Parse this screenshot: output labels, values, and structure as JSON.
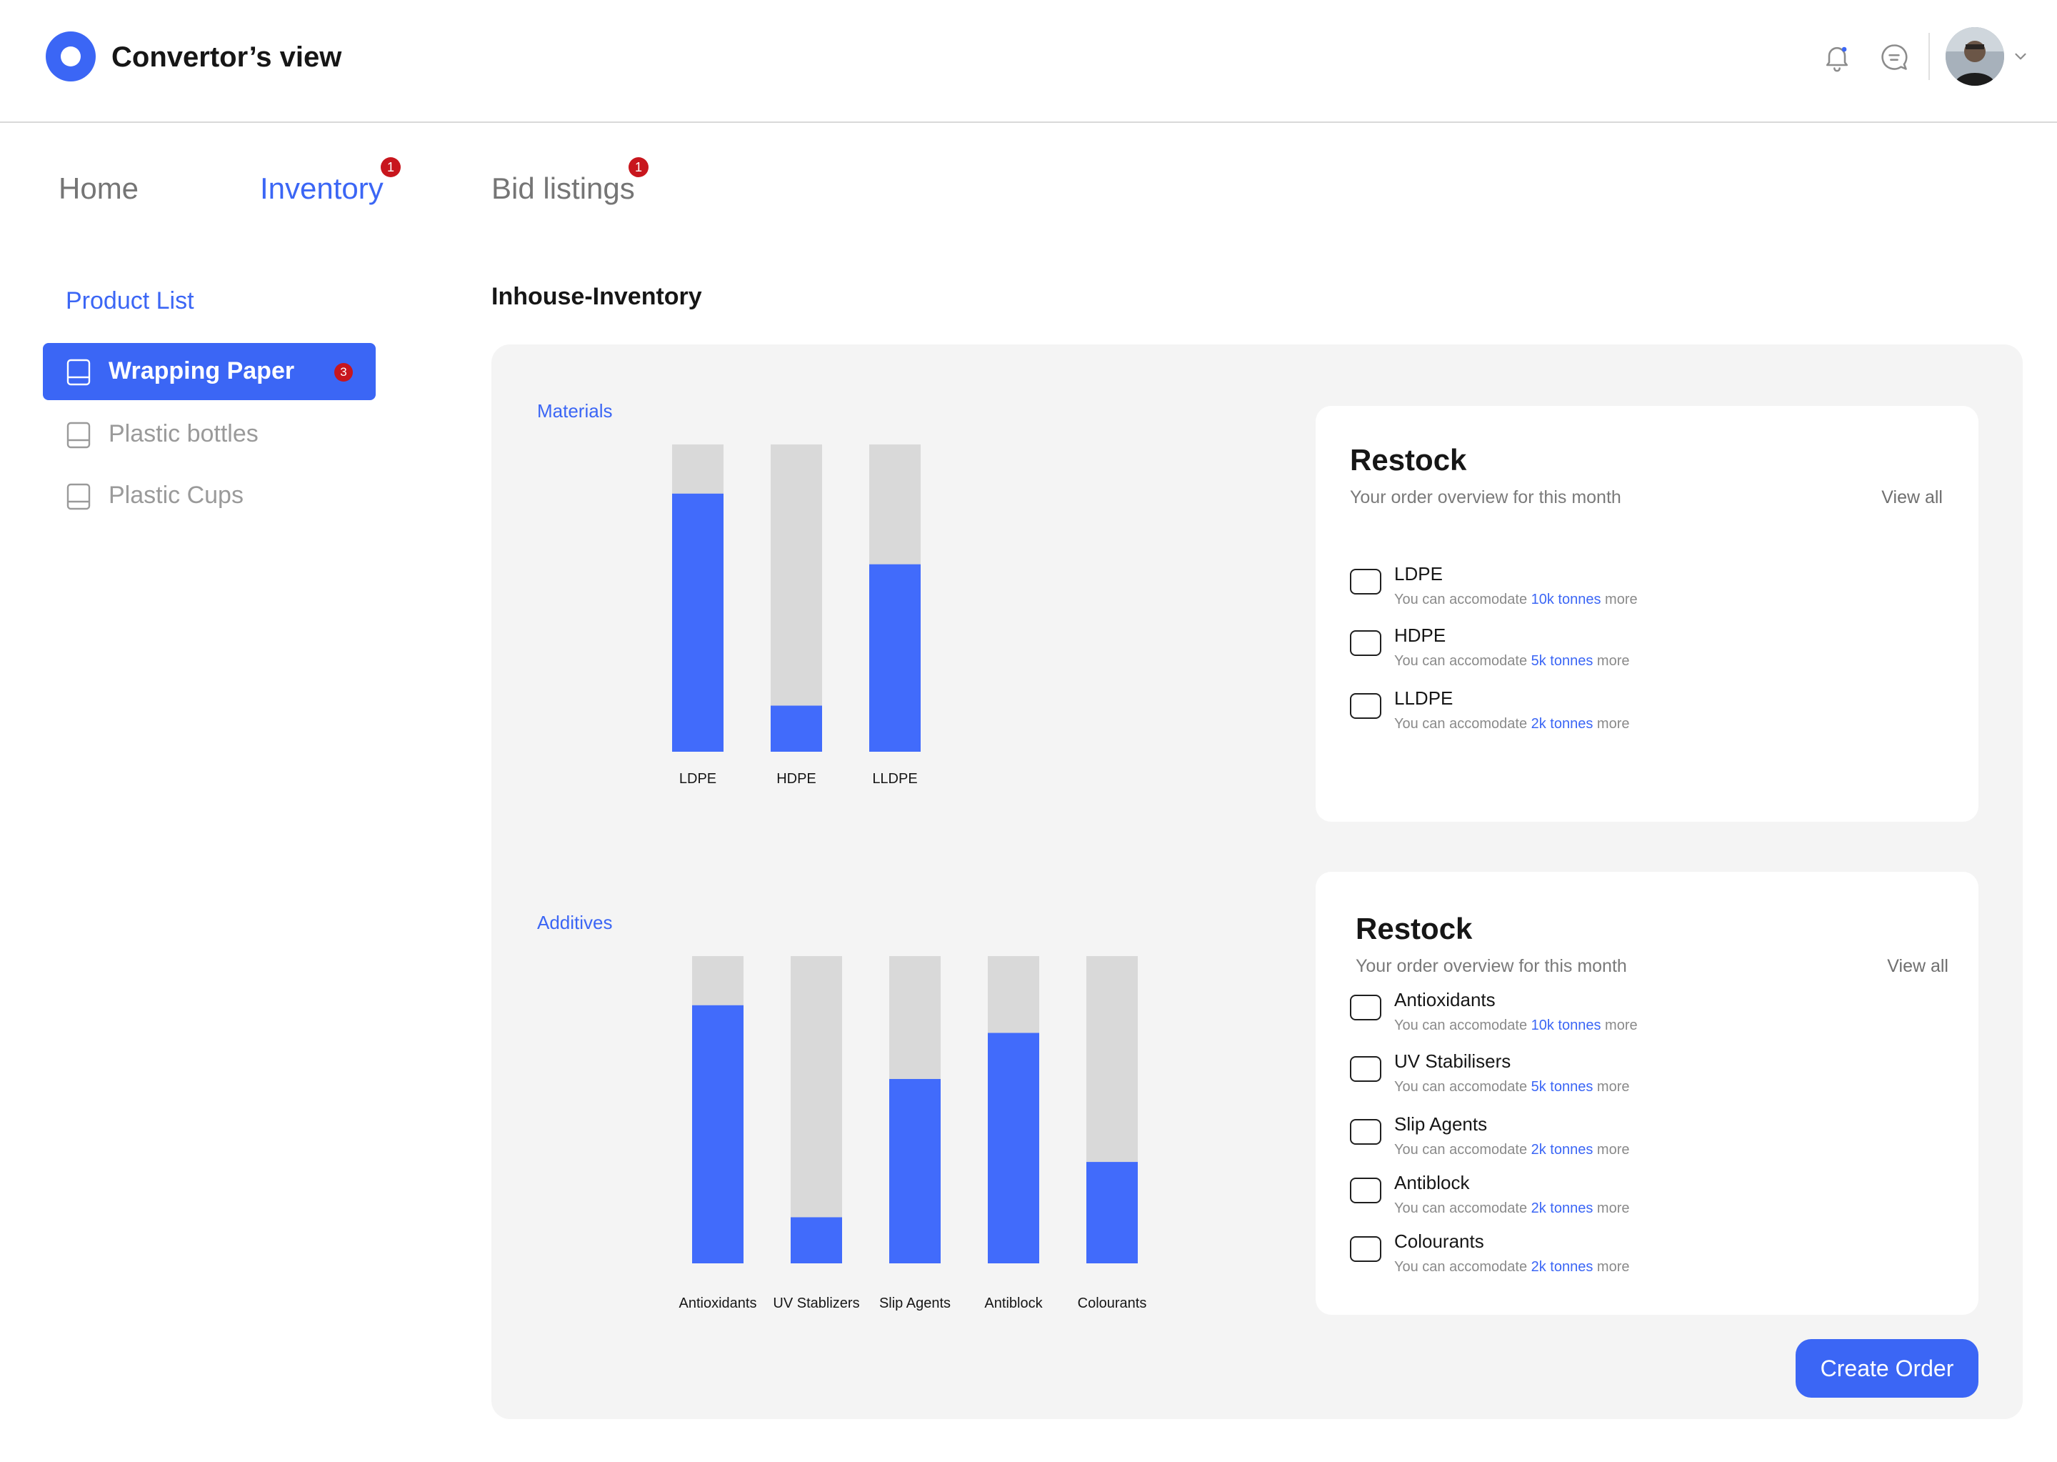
{
  "header": {
    "app_title": "Convertor’s view",
    "icons": [
      "bell-icon",
      "chat-icon",
      "chevron-down-icon"
    ]
  },
  "nav": {
    "tabs": [
      {
        "label": "Home",
        "active": false
      },
      {
        "label": "Inventory",
        "active": true,
        "badge": "1"
      },
      {
        "label": "Bid listings",
        "active": false,
        "badge": "1"
      }
    ]
  },
  "sidebar": {
    "title": "Product List",
    "items": [
      {
        "label": "Wrapping Paper",
        "active": true,
        "badge": "3"
      },
      {
        "label": "Plastic bottles",
        "active": false
      },
      {
        "label": "Plastic Cups",
        "active": false
      }
    ]
  },
  "main": {
    "title": "Inhouse-Inventory",
    "create_order_label": "Create Order"
  },
  "colors": {
    "accent": "#3b66f5",
    "bar_filled": "#416bfb",
    "bar_capacity": "#d9d9d9",
    "badge": "#c8161d"
  },
  "chart_data": [
    {
      "type": "bar",
      "title": "Materials",
      "stacked_capacity": true,
      "categories": [
        "LDPE",
        "HDPE",
        "LLDPE"
      ],
      "values": [
        84,
        15,
        61
      ],
      "ylim": [
        0,
        100
      ],
      "grid": false
    },
    {
      "type": "bar",
      "title": "Additives",
      "stacked_capacity": true,
      "categories": [
        "Antioxidants",
        "UV Stablizers",
        "Slip Agents",
        "Antiblock",
        "Colourants"
      ],
      "values": [
        84,
        15,
        60,
        75,
        33
      ],
      "ylim": [
        0,
        100
      ],
      "grid": false
    }
  ],
  "restock_cards": [
    {
      "title": "Restock",
      "subtitle": "Your order overview for this month",
      "view_all": "View all",
      "items": [
        {
          "name": "LDPE",
          "prefix": "You can accomodate ",
          "amount": "10k tonnes",
          "suffix": " more"
        },
        {
          "name": "HDPE",
          "prefix": "You can accomodate ",
          "amount": "5k tonnes",
          "suffix": " more"
        },
        {
          "name": "LLDPE",
          "prefix": "You can accomodate ",
          "amount": "2k tonnes",
          "suffix": " more"
        }
      ]
    },
    {
      "title": "Restock",
      "subtitle": "Your order overview for this month",
      "view_all": "View all",
      "items": [
        {
          "name": "Antioxidants",
          "prefix": "You can accomodate ",
          "amount": "10k tonnes",
          "suffix": " more"
        },
        {
          "name": "UV Stabilisers",
          "prefix": "You can accomodate ",
          "amount": "5k tonnes",
          "suffix": " more"
        },
        {
          "name": "Slip Agents",
          "prefix": "You can accomodate ",
          "amount": "2k tonnes",
          "suffix": " more"
        },
        {
          "name": "Antiblock",
          "prefix": "You can accomodate ",
          "amount": "2k tonnes",
          "suffix": " more"
        },
        {
          "name": "Colourants",
          "prefix": "You can accomodate ",
          "amount": "2k tonnes",
          "suffix": " more"
        }
      ]
    }
  ]
}
